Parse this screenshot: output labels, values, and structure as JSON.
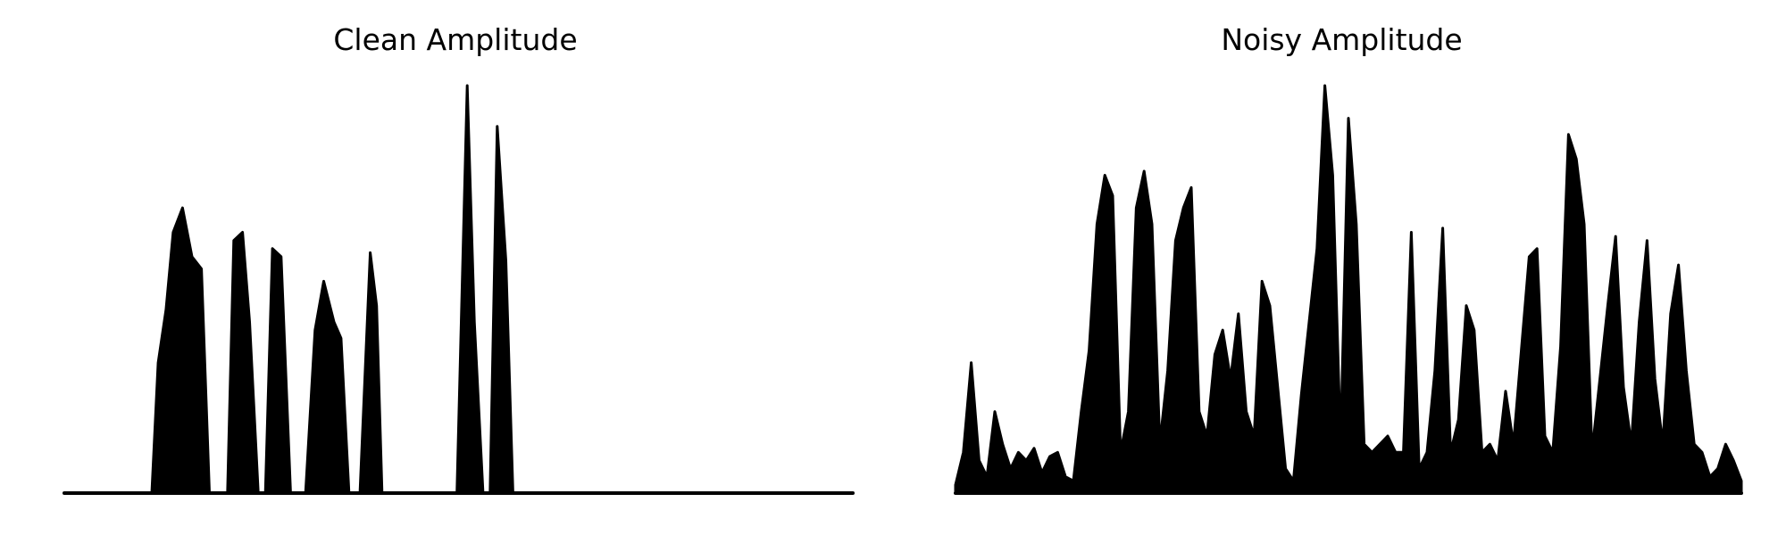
{
  "colors": {
    "signal": "#000000",
    "background": "#ffffff"
  },
  "chart_data": [
    {
      "type": "line",
      "title": "Clean Amplitude",
      "xlabel": "",
      "ylabel": "",
      "axes_visible": false,
      "grid": false,
      "legend": "none",
      "x": [
        0,
        1.1,
        2.7,
        4,
        5.4,
        6.1,
        6.9,
        7.7,
        8.6,
        9.8,
        11.1,
        11.9,
        12.9,
        13.8,
        15,
        16.2,
        17.4,
        18.4,
        19.6,
        20.7,
        21.5,
        22.6,
        23.5,
        24.6,
        25.5,
        26.4,
        27.5,
        28.7,
        29.7,
        30.6,
        31.8,
        32.9,
        34.2,
        35.1,
        36.1,
        37.5,
        38.8,
        39.6,
        40.3,
        41.2,
        42.4,
        43.7,
        44.5,
        45.5,
        46.5,
        47.7,
        48.9,
        49.8,
        51.1,
        52,
        53.1,
        54,
        54.9,
        56,
        56.9,
        58.2,
        59.2,
        60.2,
        61,
        62.1,
        63.2,
        64.3,
        65.3,
        66.5,
        67.4,
        68.5,
        69.7,
        70.3,
        71.6,
        72.4,
        73.5,
        74.3,
        75.3,
        76.4,
        77.3,
        78.5,
        79.2,
        80.3,
        81.4,
        82.6,
        83.7,
        84.7,
        85.8,
        86.8,
        87.6,
        88.7,
        89.8,
        90.6,
        91.9,
        92.9,
        93.9,
        94.9,
        95.8,
        96.9,
        97.6,
        98.8,
        100
      ],
      "y": [
        0,
        0,
        0,
        0,
        0,
        0,
        0,
        0,
        0,
        0,
        0,
        32,
        45,
        64,
        70,
        58,
        55,
        0,
        0,
        0,
        62,
        64,
        42,
        0,
        0,
        60,
        58,
        0,
        0,
        0,
        40,
        52,
        42,
        38,
        0,
        0,
        59,
        46,
        0,
        0,
        0,
        0,
        0,
        0,
        0,
        0,
        0,
        0,
        100,
        42,
        0,
        0,
        90,
        57,
        0,
        0,
        0,
        0,
        0,
        0,
        0,
        0,
        0,
        0,
        0,
        0,
        0,
        0,
        0,
        0,
        0,
        0,
        0,
        0,
        0,
        0,
        0,
        0,
        0,
        0,
        0,
        0,
        0,
        0,
        0,
        0,
        0,
        0,
        0,
        0,
        0,
        0,
        0,
        0,
        0,
        0,
        0
      ],
      "ylim": [
        0,
        100
      ]
    },
    {
      "type": "line",
      "title": "Noisy Amplitude",
      "xlabel": "",
      "ylabel": "",
      "axes_visible": false,
      "grid": false,
      "legend": "none",
      "x": [
        0,
        1,
        2,
        3,
        4,
        5,
        6,
        7,
        8,
        9,
        10,
        11,
        12,
        13,
        14,
        15,
        16,
        17,
        18,
        19,
        20,
        21,
        22,
        23,
        24,
        25,
        26,
        27,
        28,
        29,
        30,
        31,
        32,
        33,
        34,
        35,
        36,
        37,
        38,
        39,
        40,
        41,
        42,
        43,
        44,
        45,
        46,
        47,
        48,
        49,
        50,
        51,
        52,
        53,
        54,
        55,
        56,
        57,
        58,
        59,
        60,
        61,
        62,
        63,
        64,
        65,
        66,
        67,
        68,
        69,
        70,
        71,
        72,
        73,
        74,
        75,
        76,
        77,
        78,
        79,
        80,
        81,
        82,
        83,
        84,
        85,
        86,
        87,
        88,
        89,
        90,
        91,
        92,
        93,
        94,
        95,
        96,
        97,
        98,
        99,
        100
      ],
      "y": [
        2,
        10,
        32,
        8,
        4,
        20,
        12,
        6,
        10,
        8,
        11,
        5,
        9,
        10,
        4,
        3,
        20,
        35,
        66,
        78,
        73,
        10,
        20,
        70,
        79,
        66,
        12,
        30,
        62,
        70,
        75,
        20,
        14,
        34,
        40,
        28,
        44,
        20,
        14,
        52,
        46,
        26,
        6,
        3,
        24,
        42,
        60,
        100,
        78,
        12,
        92,
        66,
        12,
        10,
        12,
        14,
        10,
        10,
        64,
        6,
        10,
        30,
        65,
        10,
        18,
        46,
        40,
        10,
        12,
        8,
        25,
        12,
        35,
        58,
        60,
        14,
        10,
        36,
        88,
        82,
        66,
        10,
        28,
        46,
        63,
        26,
        12,
        42,
        62,
        28,
        12,
        44,
        56,
        30,
        12,
        10,
        4,
        6,
        12,
        8,
        3
      ],
      "ylim": [
        0,
        100
      ]
    }
  ]
}
